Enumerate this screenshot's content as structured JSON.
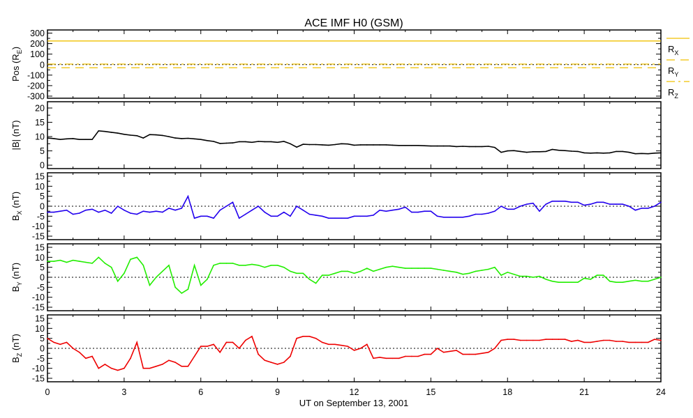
{
  "chart_data": {
    "type": "line",
    "title": "ACE IMF H0 (GSM)",
    "xlabel": "UT on September 13, 2001",
    "xlim": [
      0,
      24
    ],
    "x_ticks": [
      "0",
      "3",
      "6",
      "9",
      "12",
      "15",
      "18",
      "21",
      "24"
    ],
    "x_start": 0,
    "x_step": 0.25,
    "panels": [
      {
        "id": "pos",
        "ylabel": "Pos (R",
        "ylabel_sub": "E",
        "ylabel_end": ")",
        "ylim": [
          -320,
          330
        ],
        "y_ticks": [
          "300",
          "200",
          "100",
          "0",
          "-100",
          "-200",
          "-300"
        ],
        "zero_line": true,
        "constant_series": [
          {
            "name": "R",
            "sub": "X",
            "value": 225,
            "color": "#f0c000",
            "style": "solid"
          },
          {
            "name": "R",
            "sub": "Y",
            "value": -30,
            "color": "#f0c000",
            "style": "dashed"
          },
          {
            "name": "R",
            "sub": "Z",
            "value": 5,
            "color": "#f0c000",
            "style": "dashdot"
          }
        ]
      },
      {
        "id": "bmag",
        "ylabel": "|B| (nT)",
        "ylim": [
          -1.2,
          22.2
        ],
        "y_ticks": [
          "20",
          "15",
          "10",
          "5",
          "0"
        ],
        "zero_line": false,
        "color": "#000000",
        "values": [
          9.5,
          9.3,
          9,
          9.2,
          9.3,
          9,
          9,
          9,
          12,
          11.8,
          11.5,
          11.2,
          10.8,
          10.5,
          10.3,
          9.5,
          10.7,
          10.6,
          10.4,
          10,
          9.5,
          9.3,
          9.4,
          9.2,
          9,
          8.6,
          8.3,
          7.6,
          7.7,
          7.8,
          8.2,
          8.2,
          8,
          8.3,
          8.2,
          8.2,
          8,
          8.3,
          7.5,
          6.3,
          7.3,
          7.2,
          7.2,
          7.1,
          7,
          7.2,
          7.5,
          7.4,
          7,
          7.1,
          7.1,
          7.1,
          7.1,
          7.1,
          7,
          6.9,
          6.9,
          6.9,
          6.9,
          6.8,
          6.7,
          6.7,
          6.7,
          6.7,
          6.5,
          6.6,
          6.5,
          6.5,
          6.5,
          6.6,
          6.2,
          4.5,
          5,
          5.1,
          4.8,
          4.5,
          4.7,
          4.7,
          4.8,
          5.5,
          5.2,
          5.1,
          4.9,
          4.8,
          4.3,
          4.2,
          4.3,
          4.2,
          4.3,
          4.8,
          4.8,
          4.5,
          4,
          4.1,
          4,
          4.2,
          4.3
        ]
      },
      {
        "id": "bx",
        "ylabel": "B",
        "ylabel_sub": "X",
        "ylabel_end": " (nT)",
        "ylim": [
          -15,
          15
        ],
        "y_ticks": [
          "15",
          "10",
          "5",
          "0",
          "-5",
          "-10",
          "-15"
        ],
        "zero_line": true,
        "color": "#2200ee",
        "values": [
          -3,
          -3,
          -2.5,
          -2,
          -4,
          -3.5,
          -2,
          -1.5,
          -3,
          -2,
          -3.5,
          0,
          -2,
          -3.5,
          -4,
          -2.5,
          -3,
          -2.5,
          -3,
          -1,
          -2,
          -1,
          5,
          -6,
          -5,
          -5,
          -6,
          -2,
          0,
          2,
          -6,
          -4,
          -2,
          0,
          -3,
          -5,
          -5,
          -3,
          -5,
          0,
          -2,
          -4,
          -4.5,
          -5,
          -6,
          -6,
          -6,
          -6,
          -5,
          -5,
          -5,
          -4.5,
          -2,
          -2.5,
          -2,
          -1.5,
          -0.5,
          -3,
          -3,
          -2.5,
          -2.5,
          -5,
          -5.5,
          -5.5,
          -5.5,
          -5.5,
          -5,
          -4,
          -4,
          -3.5,
          -2.5,
          0,
          -1.5,
          -1.5,
          0,
          1,
          1.5,
          -2.5,
          1,
          2.5,
          2.5,
          2.5,
          2,
          2,
          0.5,
          1,
          2,
          2,
          1,
          1,
          1,
          0,
          -2,
          -1,
          -1,
          0,
          2
        ]
      },
      {
        "id": "by",
        "ylabel": "B",
        "ylabel_sub": "Y",
        "ylabel_end": " (nT)",
        "ylim": [
          -15,
          15
        ],
        "y_ticks": [
          "15",
          "10",
          "5",
          "0",
          "-5",
          "-10",
          "-15"
        ],
        "zero_line": true,
        "color": "#22ee00",
        "values": [
          8,
          8,
          8.5,
          7.5,
          8.5,
          8,
          7.5,
          7,
          10,
          7,
          5,
          -2,
          2,
          9,
          10,
          6,
          -4,
          0,
          3,
          6,
          -5,
          -8,
          -6,
          6,
          -4,
          -1,
          6,
          7,
          7,
          7,
          6,
          6,
          6.5,
          6,
          5,
          6,
          6,
          5,
          3,
          2,
          2,
          -1,
          -3,
          1,
          1,
          2,
          3,
          3,
          2,
          3,
          4.5,
          3,
          4,
          5,
          5.5,
          5,
          4.5,
          4.5,
          4.5,
          4.5,
          4.5,
          4,
          3.5,
          3,
          2.5,
          1.5,
          2,
          3,
          3.5,
          4,
          5,
          1,
          2.5,
          1.5,
          0.5,
          0.5,
          0,
          0.5,
          -1,
          -2,
          -2.5,
          -2.5,
          -2.5,
          -2.5,
          -0.5,
          -1,
          1,
          1,
          -2,
          -2.5,
          -2.5,
          -2,
          -1.5,
          -2,
          -2,
          -1,
          0
        ]
      },
      {
        "id": "bz",
        "ylabel": "B",
        "ylabel_sub": "Z",
        "ylabel_end": " (nT)",
        "ylim": [
          -15,
          15
        ],
        "y_ticks": [
          "15",
          "10",
          "5",
          "0",
          "-5",
          "-10",
          "-15"
        ],
        "zero_line": true,
        "color": "#ee0000",
        "values": [
          5,
          3,
          2,
          3,
          0,
          -2,
          -5,
          -4,
          -10,
          -8,
          -10,
          -11,
          -10,
          -5,
          3,
          -10,
          -10,
          -9,
          -8,
          -6,
          -7,
          -9,
          -9,
          -4,
          1,
          1,
          2,
          -2,
          3,
          3,
          0,
          4,
          6,
          -3,
          -6,
          -7,
          -8,
          -7,
          -4,
          5,
          6,
          6,
          5,
          3,
          2,
          2,
          1.5,
          1,
          -1,
          0,
          2,
          -5,
          -4.5,
          -5,
          -5,
          -5,
          -4,
          -4,
          -4,
          -3,
          -3,
          0,
          -2,
          -1.5,
          -1,
          -3,
          -3,
          -3,
          -2.5,
          -2,
          0,
          4,
          4.5,
          4.5,
          4,
          4,
          4,
          4,
          4.5,
          4.5,
          4.5,
          4.5,
          3.5,
          4,
          3,
          3,
          3.5,
          4,
          4,
          3.5,
          3.5,
          3,
          3,
          3,
          3,
          4.5,
          4
        ]
      }
    ]
  }
}
